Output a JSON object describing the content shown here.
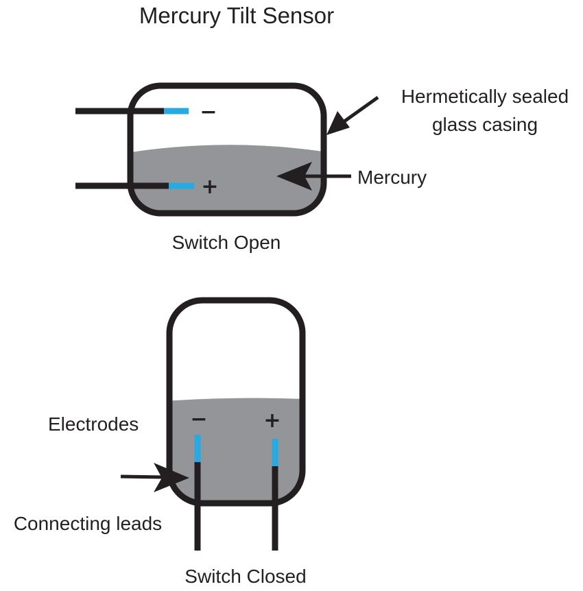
{
  "title": "Mercury Tilt Sensor",
  "labels": {
    "casing_line1": "Hermetically sealed",
    "casing_line2": "glass casing",
    "mercury": "Mercury",
    "switch_open": "Switch Open",
    "electrodes": "Electrodes",
    "connecting_leads": "Connecting leads",
    "switch_closed": "Switch Closed"
  },
  "signs": {
    "negative": "−",
    "positive": "+"
  },
  "colors": {
    "outline": "#231f20",
    "mercury": "#939598",
    "electrode": "#27aae1",
    "background": "#ffffff"
  }
}
